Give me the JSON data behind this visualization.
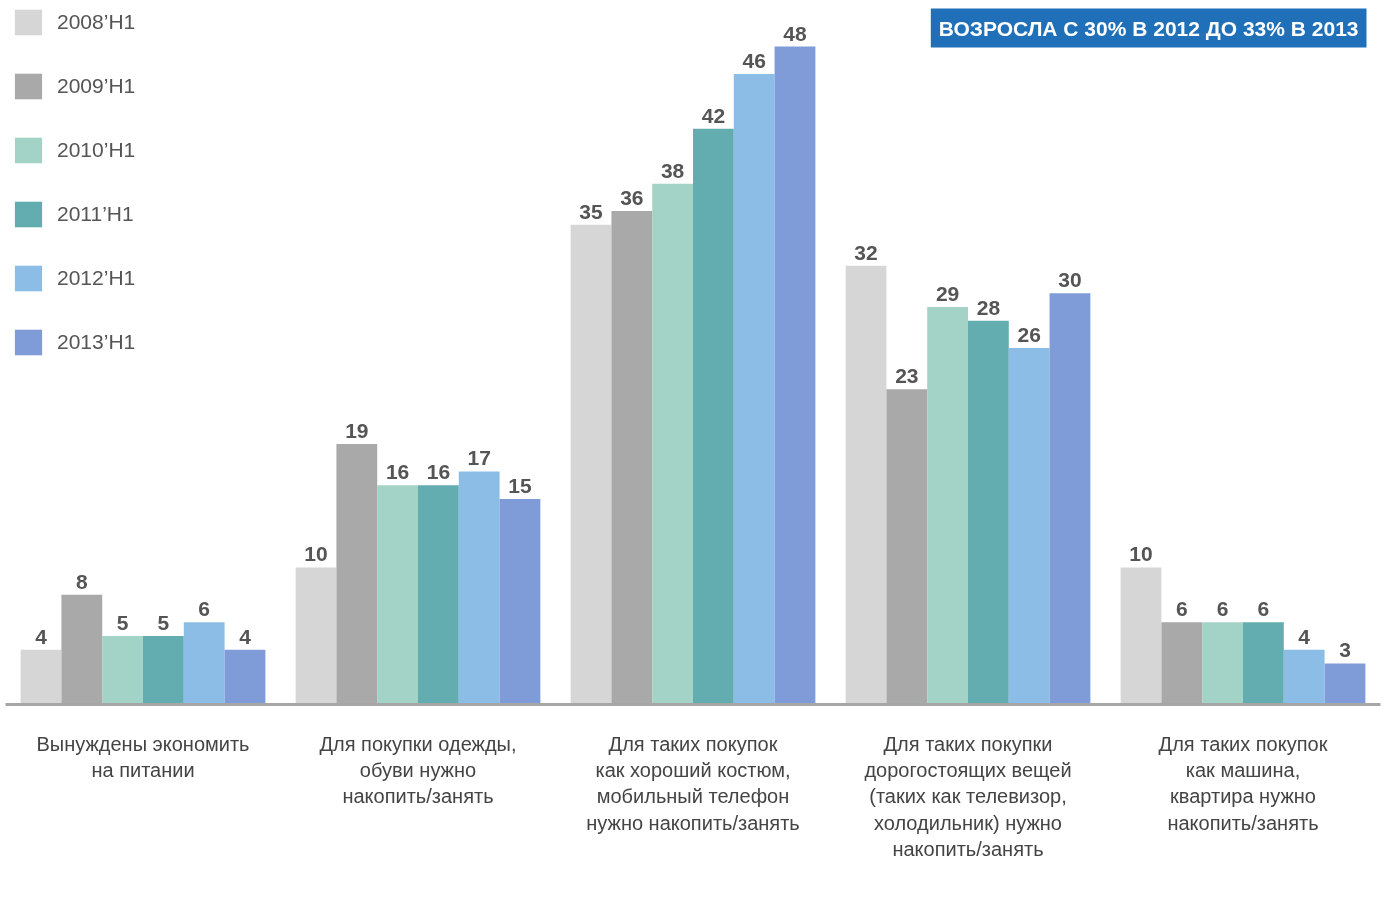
{
  "chart_data": {
    "type": "bar",
    "categories": [
      "Вынуждены экономить\nна питании",
      "Для покупки одежды,\nобуви нужно\nнакопить/занять",
      "Для таких покупок\nкак хороший костюм,\nмобильный телефон\nнужно накопить/занять",
      "Для таких покупки\nдорогостоящих вещей\n(таких как телевизор,\nхолодильник) нужно\nнакопить/занять",
      "Для таких покупок\nкак машина,\nквартира нужно\nнакопить/занять"
    ],
    "series": [
      {
        "name": "2008’H1",
        "color": "#d6d6d6",
        "values": [
          4,
          10,
          35,
          32,
          10
        ]
      },
      {
        "name": "2009’H1",
        "color": "#a9a9a9",
        "values": [
          8,
          19,
          36,
          23,
          6
        ]
      },
      {
        "name": "2010’H1",
        "color": "#a3d3c6",
        "values": [
          5,
          16,
          38,
          29,
          6
        ]
      },
      {
        "name": "2011’H1",
        "color": "#63adb1",
        "values": [
          5,
          16,
          42,
          28,
          6
        ]
      },
      {
        "name": "2012’H1",
        "color": "#8bbde6",
        "values": [
          6,
          17,
          46,
          26,
          4
        ]
      },
      {
        "name": "2013’H1",
        "color": "#7f9bd8",
        "values": [
          4,
          15,
          48,
          30,
          3
        ]
      }
    ],
    "data_labels": true,
    "legend": "top left",
    "grid": false,
    "annotations": [
      "ВОЗРОСЛА С 30% В 2012 ДО 33% В 2013"
    ]
  }
}
